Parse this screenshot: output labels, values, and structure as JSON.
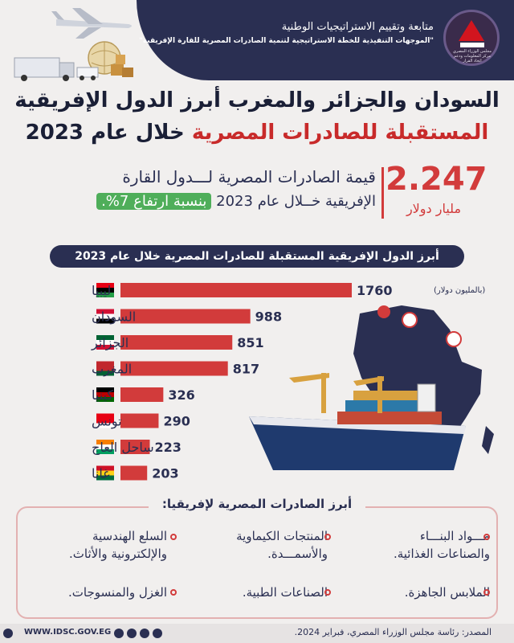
{
  "header": {
    "org_title": "متابعة وتقييم الاستراتيجيات الوطنية",
    "org_subtitle": "\"الموجهات التنفيذية للخطة الاستراتيجية لتنمية الصادرات المصرية للقارة الإفريقية\"",
    "logo_text": "مجلس الوزراء المصري مركز المعلومات ودعم اتخاذ القرار"
  },
  "title": {
    "line1": "السودان والجزائر والمغرب أبرز الدول الإفريقية",
    "line2_red": "المستقبلة للصادرات المصرية",
    "line2_dark": "خلال عام 2023"
  },
  "stat": {
    "value": "2.247",
    "unit": "مليار دولار",
    "line1": "قيمة الصادرات المصرية لـــدول القارة",
    "line2": "الإفريقية خــلال عام 2023",
    "highlight": "بنسبة ارتفاع 7%."
  },
  "chart_header": "أبرز الدول الإفريقية المستقبلة للصادرات المصرية خلال عام 2023",
  "chart_data": {
    "type": "bar",
    "categories": [
      "ليبيا",
      "السودان",
      "الجزائر",
      "المغرب",
      "كينيا",
      "تونس",
      "ساحل العاج",
      "غانا"
    ],
    "values": [
      1760,
      988,
      851,
      817,
      326,
      290,
      223,
      203
    ],
    "value_labels": [
      "1760",
      "988",
      "851",
      "817",
      "326",
      "290",
      "223",
      "203"
    ],
    "title": "أبرز الدول الإفريقية المستقبلة للصادرات المصرية خلال عام 2023",
    "unit_label": "(بالمليون دولار)",
    "bar_color": "#d23b3b",
    "legend": "none",
    "grid": false
  },
  "exports": {
    "title": "أبرز الصادرات المصرية لإفريقيا:",
    "items": [
      {
        "line1": "مـــواد البنـــاء",
        "line2": "والصناعات الغذائية."
      },
      {
        "line1": "المنتجات الكيماوية",
        "line2": "والأسمـــدة."
      },
      {
        "line1": "السلع الهندسية",
        "line2": "والإلكترونية والأثاث."
      },
      {
        "line1": "الملابس الجاهزة.",
        "line2": ""
      },
      {
        "line1": "الصناعات الطبية.",
        "line2": ""
      },
      {
        "line1": "الغزل والمنسوجات.",
        "line2": ""
      }
    ]
  },
  "footer": {
    "url": "WWW.IDSC.GOV.EG",
    "source": "المصدر: رئاسة مجلس الوزراء المصري، فبراير 2024."
  },
  "colors": {
    "navy": "#2a2f52",
    "accent_red": "#d23b3b",
    "highlight_green": "#4fae5a"
  }
}
